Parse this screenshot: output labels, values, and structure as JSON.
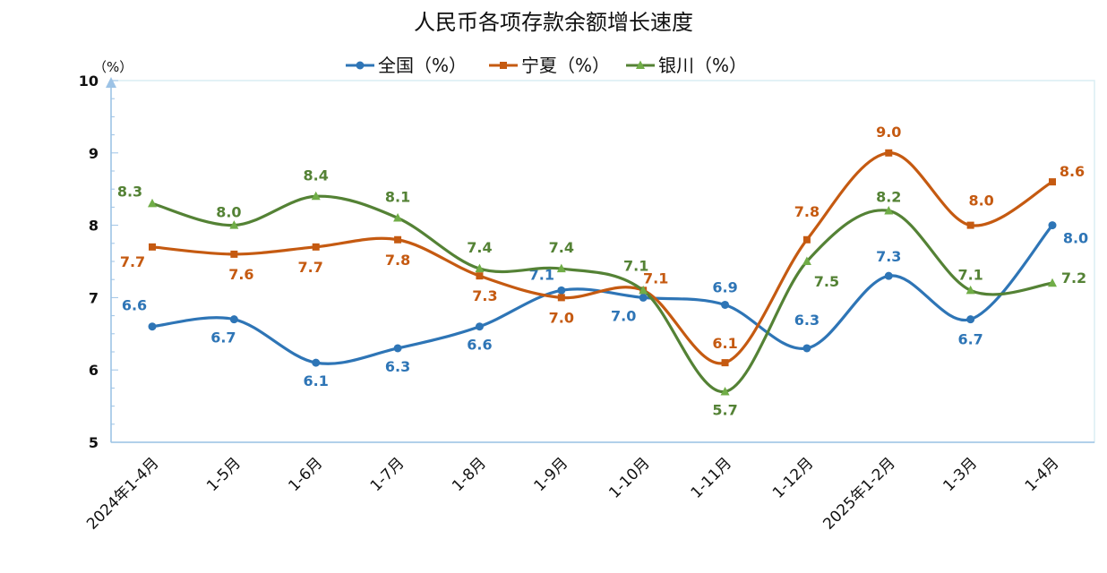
{
  "chart_data": {
    "type": "line",
    "title": "人民币各项存款余额增长速度",
    "unit_label": "（%）",
    "categories": [
      "2024年1-4月",
      "1-5月",
      "1-6月",
      "1-7月",
      "1-8月",
      "1-9月",
      "1-10月",
      "1-11月",
      "1-12月",
      "2025年1-2月",
      "1-3月",
      "1-4月"
    ],
    "ylim": [
      5,
      10
    ],
    "yticks": [
      "5",
      "6",
      "7",
      "8",
      "9",
      "10"
    ],
    "smooth": true,
    "legend_position": "top-center",
    "series": [
      {
        "name": "全国（%）",
        "color": "#2E75B6",
        "marker": "circle",
        "values": [
          6.6,
          6.7,
          6.1,
          6.3,
          6.6,
          7.1,
          7.0,
          6.9,
          6.3,
          7.3,
          6.7,
          8.0
        ],
        "labels": [
          "6.6",
          "6.7",
          "6.1",
          "6.3",
          "6.6",
          "7.1",
          "7.0",
          "6.9",
          "6.3",
          "7.3",
          "6.7",
          "8.0"
        ]
      },
      {
        "name": "宁夏（%）",
        "color": "#C55A11",
        "marker": "square",
        "values": [
          7.7,
          7.6,
          7.7,
          7.8,
          7.3,
          7.0,
          7.1,
          6.1,
          7.8,
          9.0,
          8.0,
          8.6
        ],
        "labels": [
          "7.7",
          "7.6",
          "7.7",
          "7.8",
          "7.3",
          "7.0",
          "7.1",
          "6.1",
          "7.8",
          "9.0",
          "8.0",
          "8.6"
        ]
      },
      {
        "name": "银川（%）",
        "color": "#548235",
        "marker": "triangle",
        "values": [
          8.3,
          8.0,
          8.4,
          8.1,
          7.4,
          7.4,
          7.1,
          5.7,
          7.5,
          8.2,
          7.1,
          7.2
        ],
        "labels": [
          "8.3",
          "8.0",
          "8.4",
          "8.1",
          "7.4",
          "7.4",
          "7.1",
          "5.7",
          "7.5",
          "8.2",
          "7.1",
          "7.2"
        ]
      }
    ]
  }
}
